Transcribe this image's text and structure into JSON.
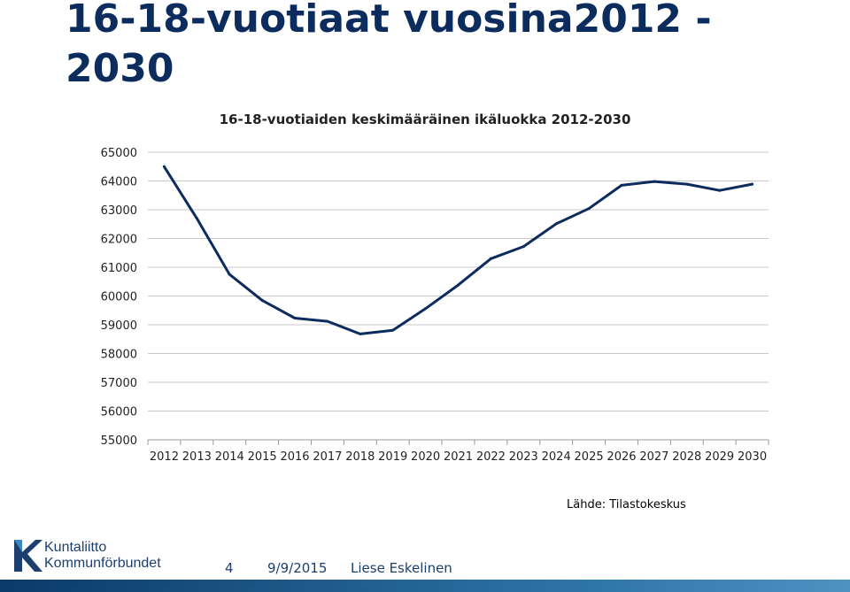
{
  "slide": {
    "title": "16-18-vuotiaat vuosina2012 - 2030",
    "source": "Lähde: Tilastokeskus",
    "footer": {
      "page": "4",
      "date": "9/9/2015",
      "author": "Liese Eskelinen"
    },
    "logo": {
      "line1": "Kuntaliitto",
      "line2": "Kommunförbundet"
    }
  },
  "colors": {
    "title": "#0d2c5e",
    "line": "#0d2c5e",
    "grid": "#c8c8c8",
    "footer_bar": "#1f5a8e"
  },
  "chart_data": {
    "type": "line",
    "title": "16-18-vuotiaiden keskimääräinen ikäluokka 2012-2030",
    "xlabel": "",
    "ylabel": "",
    "categories": [
      "2012",
      "2013",
      "2014",
      "2015",
      "2016",
      "2017",
      "2018",
      "2019",
      "2020",
      "2021",
      "2022",
      "2023",
      "2024",
      "2025",
      "2026",
      "2027",
      "2028",
      "2029",
      "2030"
    ],
    "series": [
      {
        "values": [
          64500,
          62700,
          60750,
          59850,
          59230,
          59120,
          58680,
          58810,
          59560,
          60380,
          61300,
          61720,
          62510,
          63040,
          63850,
          63980,
          63890,
          63670,
          63890
        ]
      }
    ],
    "ylim": [
      55000,
      65000
    ],
    "yticks": [
      55000,
      56000,
      57000,
      58000,
      59000,
      60000,
      61000,
      62000,
      63000,
      64000,
      65000
    ],
    "grid": "horizontal",
    "legend": "none"
  }
}
